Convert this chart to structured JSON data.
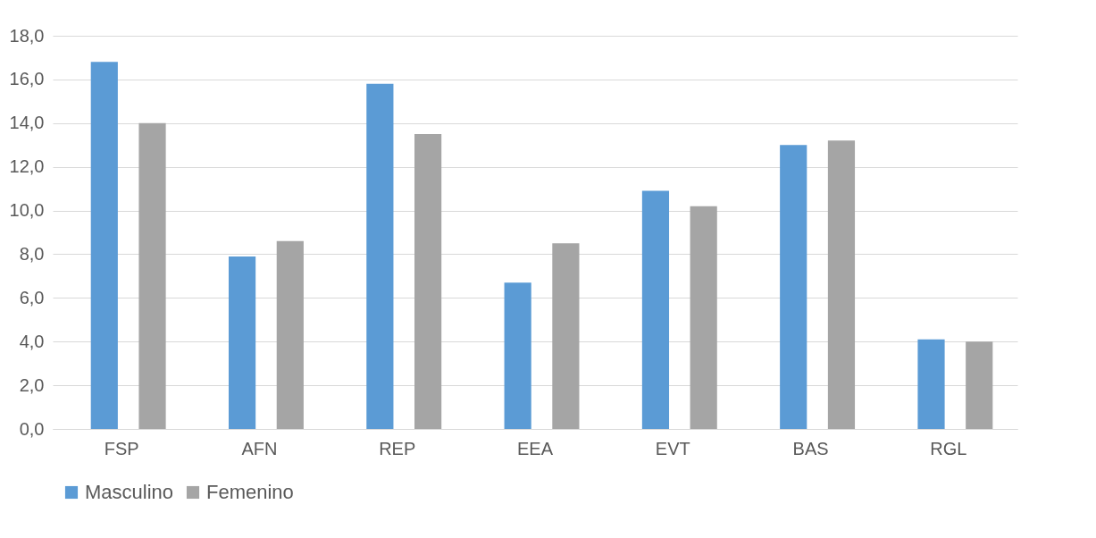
{
  "chart_data": {
    "type": "bar",
    "categories": [
      "FSP",
      "AFN",
      "REP",
      "EEA",
      "EVT",
      "BAS",
      "RGL"
    ],
    "series": [
      {
        "name": "Masculino",
        "color": "#5b9bd5",
        "values": [
          16.8,
          7.9,
          15.8,
          6.7,
          10.9,
          13.0,
          4.1
        ]
      },
      {
        "name": "Femenino",
        "color": "#a5a5a5",
        "values": [
          14.0,
          8.6,
          13.5,
          8.5,
          10.2,
          13.2,
          4.0
        ]
      }
    ],
    "ylim": [
      0,
      18
    ],
    "yticks": [
      {
        "value": 0,
        "label": "0,0"
      },
      {
        "value": 2,
        "label": "2,0"
      },
      {
        "value": 4,
        "label": "4,0"
      },
      {
        "value": 6,
        "label": "6,0"
      },
      {
        "value": 8,
        "label": "8,0"
      },
      {
        "value": 10,
        "label": "10,0"
      },
      {
        "value": 12,
        "label": "12,0"
      },
      {
        "value": 14,
        "label": "14,0"
      },
      {
        "value": 16,
        "label": "16,0"
      },
      {
        "value": 18,
        "label": "18,0"
      }
    ],
    "grid": "y",
    "legend": "bottom"
  }
}
